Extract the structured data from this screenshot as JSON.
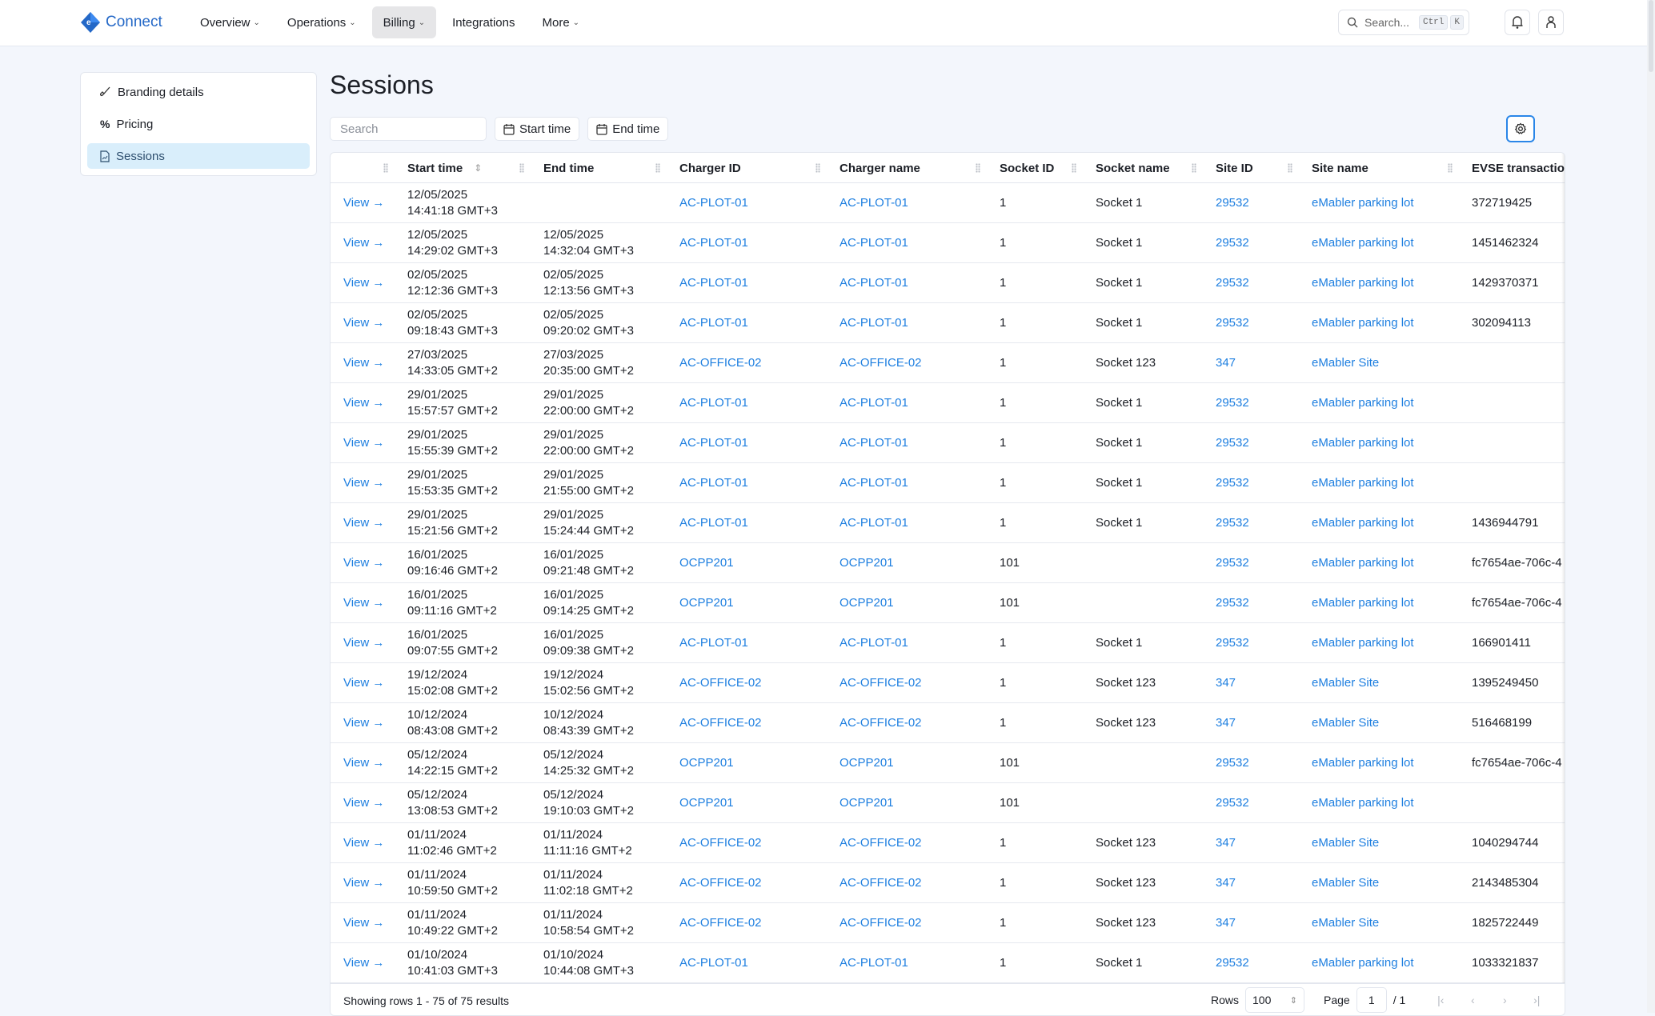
{
  "app": {
    "name": "Connect",
    "logo_text": "eM"
  },
  "nav": [
    {
      "label": "Overview",
      "dropdown": true
    },
    {
      "label": "Operations",
      "dropdown": true
    },
    {
      "label": "Billing",
      "dropdown": true,
      "active": true
    },
    {
      "label": "Integrations",
      "dropdown": false
    },
    {
      "label": "More",
      "dropdown": true
    }
  ],
  "global_search": {
    "placeholder": "Search...",
    "shortcut": [
      "Ctrl",
      "K"
    ]
  },
  "icons": {
    "notifications": "bell-icon",
    "profile": "user-icon",
    "settings": "gear-icon"
  },
  "sidebar": {
    "items": [
      {
        "label": "Branding details",
        "icon": "brush-icon"
      },
      {
        "label": "Pricing",
        "icon": "percent-icon"
      },
      {
        "label": "Sessions",
        "icon": "document-icon",
        "active": true
      }
    ]
  },
  "page": {
    "title": "Sessions"
  },
  "toolbar": {
    "search_placeholder": "Search",
    "start_time": "Start time",
    "end_time": "End time"
  },
  "colors": {
    "accent": "#1e7fe0",
    "active_nav": "#e6e6e8",
    "active_sidebar": "#d9eefb",
    "background": "#f3f6fc"
  },
  "table": {
    "columns": [
      "",
      "Start time",
      "End time",
      "Charger ID",
      "Charger name",
      "Socket ID",
      "Socket name",
      "Site ID",
      "Site name",
      "EVSE transaction"
    ],
    "view_label": "View →",
    "rows": [
      [
        "12/05/2025",
        "14:41:18 GMT+3",
        "",
        "",
        "AC-PLOT-01",
        "AC-PLOT-01",
        "1",
        "Socket 1",
        "29532",
        "eMabler parking lot",
        "372719425"
      ],
      [
        "12/05/2025",
        "14:29:02 GMT+3",
        "12/05/2025",
        "14:32:04 GMT+3",
        "AC-PLOT-01",
        "AC-PLOT-01",
        "1",
        "Socket 1",
        "29532",
        "eMabler parking lot",
        "1451462324"
      ],
      [
        "02/05/2025",
        "12:12:36 GMT+3",
        "02/05/2025",
        "12:13:56 GMT+3",
        "AC-PLOT-01",
        "AC-PLOT-01",
        "1",
        "Socket 1",
        "29532",
        "eMabler parking lot",
        "1429370371"
      ],
      [
        "02/05/2025",
        "09:18:43 GMT+3",
        "02/05/2025",
        "09:20:02 GMT+3",
        "AC-PLOT-01",
        "AC-PLOT-01",
        "1",
        "Socket 1",
        "29532",
        "eMabler parking lot",
        "302094113"
      ],
      [
        "27/03/2025",
        "14:33:05 GMT+2",
        "27/03/2025",
        "20:35:00 GMT+2",
        "AC-OFFICE-02",
        "AC-OFFICE-02",
        "1",
        "Socket 123",
        "347",
        "eMabler Site",
        ""
      ],
      [
        "29/01/2025",
        "15:57:57 GMT+2",
        "29/01/2025",
        "22:00:00 GMT+2",
        "AC-PLOT-01",
        "AC-PLOT-01",
        "1",
        "Socket 1",
        "29532",
        "eMabler parking lot",
        ""
      ],
      [
        "29/01/2025",
        "15:55:39 GMT+2",
        "29/01/2025",
        "22:00:00 GMT+2",
        "AC-PLOT-01",
        "AC-PLOT-01",
        "1",
        "Socket 1",
        "29532",
        "eMabler parking lot",
        ""
      ],
      [
        "29/01/2025",
        "15:53:35 GMT+2",
        "29/01/2025",
        "21:55:00 GMT+2",
        "AC-PLOT-01",
        "AC-PLOT-01",
        "1",
        "Socket 1",
        "29532",
        "eMabler parking lot",
        ""
      ],
      [
        "29/01/2025",
        "15:21:56 GMT+2",
        "29/01/2025",
        "15:24:44 GMT+2",
        "AC-PLOT-01",
        "AC-PLOT-01",
        "1",
        "Socket 1",
        "29532",
        "eMabler parking lot",
        "1436944791"
      ],
      [
        "16/01/2025",
        "09:16:46 GMT+2",
        "16/01/2025",
        "09:21:48 GMT+2",
        "OCPP201",
        "OCPP201",
        "101",
        "",
        "29532",
        "eMabler parking lot",
        "fc7654ae-706c-4"
      ],
      [
        "16/01/2025",
        "09:11:16 GMT+2",
        "16/01/2025",
        "09:14:25 GMT+2",
        "OCPP201",
        "OCPP201",
        "101",
        "",
        "29532",
        "eMabler parking lot",
        "fc7654ae-706c-4"
      ],
      [
        "16/01/2025",
        "09:07:55 GMT+2",
        "16/01/2025",
        "09:09:38 GMT+2",
        "AC-PLOT-01",
        "AC-PLOT-01",
        "1",
        "Socket 1",
        "29532",
        "eMabler parking lot",
        "166901411"
      ],
      [
        "19/12/2024",
        "15:02:08 GMT+2",
        "19/12/2024",
        "15:02:56 GMT+2",
        "AC-OFFICE-02",
        "AC-OFFICE-02",
        "1",
        "Socket 123",
        "347",
        "eMabler Site",
        "1395249450"
      ],
      [
        "10/12/2024",
        "08:43:08 GMT+2",
        "10/12/2024",
        "08:43:39 GMT+2",
        "AC-OFFICE-02",
        "AC-OFFICE-02",
        "1",
        "Socket 123",
        "347",
        "eMabler Site",
        "516468199"
      ],
      [
        "05/12/2024",
        "14:22:15 GMT+2",
        "05/12/2024",
        "14:25:32 GMT+2",
        "OCPP201",
        "OCPP201",
        "101",
        "",
        "29532",
        "eMabler parking lot",
        "fc7654ae-706c-4"
      ],
      [
        "05/12/2024",
        "13:08:53 GMT+2",
        "05/12/2024",
        "19:10:03 GMT+2",
        "OCPP201",
        "OCPP201",
        "101",
        "",
        "29532",
        "eMabler parking lot",
        ""
      ],
      [
        "01/11/2024",
        "11:02:46 GMT+2",
        "01/11/2024",
        "11:11:16 GMT+2",
        "AC-OFFICE-02",
        "AC-OFFICE-02",
        "1",
        "Socket 123",
        "347",
        "eMabler Site",
        "1040294744"
      ],
      [
        "01/11/2024",
        "10:59:50 GMT+2",
        "01/11/2024",
        "11:02:18 GMT+2",
        "AC-OFFICE-02",
        "AC-OFFICE-02",
        "1",
        "Socket 123",
        "347",
        "eMabler Site",
        "2143485304"
      ],
      [
        "01/11/2024",
        "10:49:22 GMT+2",
        "01/11/2024",
        "10:58:54 GMT+2",
        "AC-OFFICE-02",
        "AC-OFFICE-02",
        "1",
        "Socket 123",
        "347",
        "eMabler Site",
        "1825722449"
      ],
      [
        "01/10/2024",
        "10:41:03 GMT+3",
        "01/10/2024",
        "10:44:08 GMT+3",
        "AC-PLOT-01",
        "AC-PLOT-01",
        "1",
        "Socket 1",
        "29532",
        "eMabler parking lot",
        "1033321837"
      ]
    ]
  },
  "footer": {
    "summary": "Showing rows 1 - 75 of 75 results",
    "rows_label": "Rows",
    "rows_value": "100",
    "page_label": "Page",
    "page_value": "1",
    "page_total": "/ 1"
  }
}
